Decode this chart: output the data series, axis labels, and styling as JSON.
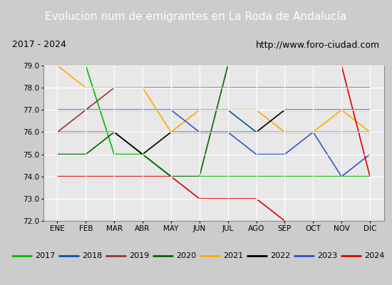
{
  "title": "Evolucion num de emigrantes en La Roda de Andalucía",
  "subtitle_left": "2017 - 2024",
  "subtitle_right": "http://www.foro-ciudad.com",
  "months": [
    "ENE",
    "FEB",
    "MAR",
    "ABR",
    "MAY",
    "JUN",
    "JUL",
    "AGO",
    "SEP",
    "OCT",
    "NOV",
    "DIC"
  ],
  "ylim": [
    72.0,
    79.0
  ],
  "yticks": [
    72.0,
    73.0,
    74.0,
    75.0,
    76.0,
    77.0,
    78.0,
    79.0
  ],
  "series": {
    "2017": {
      "color": "#00bb00",
      "values": [
        79.0,
        79.0,
        75.0,
        75.0,
        74.0,
        74.0,
        74.0,
        74.0,
        74.0,
        74.0,
        74.0,
        74.0
      ]
    },
    "2018": {
      "color": "#0055aa",
      "values": [
        77.0,
        77.0,
        77.0,
        77.0,
        77.0,
        77.0,
        77.0,
        76.0,
        76.0,
        76.0,
        76.0,
        76.0
      ]
    },
    "2019": {
      "color": "#993333",
      "values": [
        76.0,
        77.0,
        78.0,
        78.0,
        78.0,
        78.0,
        78.0,
        78.0,
        78.0,
        78.0,
        78.0,
        78.0
      ]
    },
    "2020": {
      "color": "#006600",
      "values": [
        75.0,
        75.0,
        76.0,
        75.0,
        74.0,
        74.0,
        79.0,
        79.0,
        79.0,
        79.0,
        79.0,
        79.0
      ]
    },
    "2021": {
      "color": "#ffaa00",
      "values": [
        79.0,
        78.0,
        78.0,
        78.0,
        76.0,
        77.0,
        77.0,
        77.0,
        76.0,
        76.0,
        77.0,
        76.0
      ]
    },
    "2022": {
      "color": "#000000",
      "values": [
        76.0,
        76.0,
        76.0,
        75.0,
        76.0,
        76.0,
        76.0,
        76.0,
        77.0,
        77.0,
        77.0,
        77.0
      ]
    },
    "2023": {
      "color": "#3355cc",
      "values": [
        77.0,
        77.0,
        77.0,
        77.0,
        77.0,
        76.0,
        76.0,
        75.0,
        75.0,
        76.0,
        74.0,
        75.0
      ]
    },
    "2024": {
      "color": "#dd0000",
      "values": [
        74.0,
        74.0,
        74.0,
        74.0,
        74.0,
        73.0,
        73.0,
        73.0,
        72.0,
        null,
        79.0,
        74.0
      ]
    }
  },
  "title_bg_color": "#5588cc",
  "title_color": "#ffffff",
  "title_fontsize": 11,
  "outer_bg_color": "#cccccc",
  "inner_bg_color": "#dddddd",
  "plot_bg_color": "#e8e8e8",
  "subtitle_bg_color": "#cccccc",
  "grid_color": "#ffffff",
  "legend_bg_color": "#cccccc",
  "legend_border_color": "#888888"
}
